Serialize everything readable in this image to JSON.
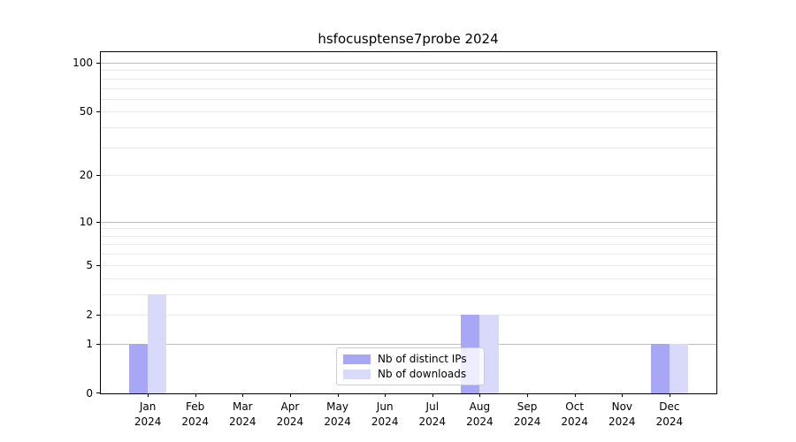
{
  "chart_data": {
    "type": "bar",
    "title": "hsfocusptense7probe 2024",
    "categories": [
      {
        "month": "Jan",
        "year": "2024"
      },
      {
        "month": "Feb",
        "year": "2024"
      },
      {
        "month": "Mar",
        "year": "2024"
      },
      {
        "month": "Apr",
        "year": "2024"
      },
      {
        "month": "May",
        "year": "2024"
      },
      {
        "month": "Jun",
        "year": "2024"
      },
      {
        "month": "Jul",
        "year": "2024"
      },
      {
        "month": "Aug",
        "year": "2024"
      },
      {
        "month": "Sep",
        "year": "2024"
      },
      {
        "month": "Oct",
        "year": "2024"
      },
      {
        "month": "Nov",
        "year": "2024"
      },
      {
        "month": "Dec",
        "year": "2024"
      }
    ],
    "series": [
      {
        "name": "Nb of distinct IPs",
        "color": "#a7a7f6",
        "values": [
          1,
          0,
          0,
          0,
          0,
          0,
          0,
          2,
          0,
          0,
          0,
          1
        ]
      },
      {
        "name": "Nb of downloads",
        "color": "#d9d9fa",
        "values": [
          3,
          0,
          0,
          0,
          0,
          0,
          0,
          2,
          0,
          0,
          0,
          1
        ]
      }
    ],
    "y_axis": {
      "scale": "log1p",
      "tick_values": [
        0,
        1,
        2,
        5,
        10,
        20,
        50,
        100
      ],
      "major_gridlines": [
        1,
        10,
        100
      ],
      "minor_gridlines": [
        2,
        3,
        4,
        5,
        6,
        7,
        8,
        9,
        20,
        30,
        40,
        50,
        60,
        70,
        80,
        90
      ],
      "ymax_at_top_edge": 116
    },
    "x_axis": {
      "lim": [
        -0.99,
        11.99
      ],
      "bar_half_width": 0.4
    },
    "legend": {
      "position": "lower-center-inside"
    },
    "grid": "on",
    "colors": {
      "major_grid": "#bcbcbc",
      "minor_grid": "#e9e9e9",
      "axis": "#000000",
      "background": "#ffffff"
    }
  }
}
